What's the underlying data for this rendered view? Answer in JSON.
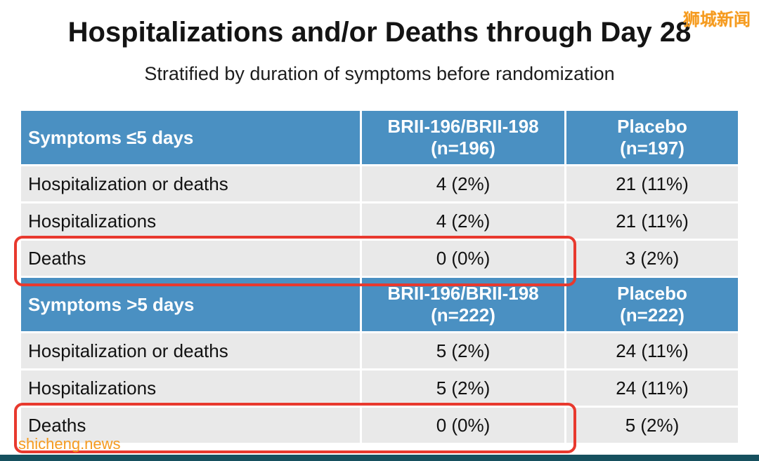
{
  "page": {
    "title": "Hospitalizations and/or Deaths through Day 28",
    "subtitle": "Stratified by duration of symptoms before randomization"
  },
  "watermarks": {
    "top_right": "狮城新闻",
    "bottom_left": "shicheng.news"
  },
  "table": {
    "sections": [
      {
        "header": {
          "row_label": "Symptoms ≤5 days",
          "treatment_line1": "BRII-196/BRII-198",
          "treatment_line2": "(n=196)",
          "placebo_line1": "Placebo",
          "placebo_line2": "(n=197)"
        },
        "rows": [
          {
            "label": "Hospitalization or deaths",
            "treatment": "4 (2%)",
            "placebo": "21 (11%)",
            "highlighted": false
          },
          {
            "label": "Hospitalizations",
            "treatment": "4 (2%)",
            "placebo": "21 (11%)",
            "highlighted": false
          },
          {
            "label": "Deaths",
            "treatment": "0 (0%)",
            "placebo": "3 (2%)",
            "highlighted": true
          }
        ]
      },
      {
        "header": {
          "row_label": "Symptoms >5 days",
          "treatment_line1": "BRII-196/BRII-198",
          "treatment_line2": "(n=222)",
          "placebo_line1": "Placebo",
          "placebo_line2": "(n=222)"
        },
        "rows": [
          {
            "label": "Hospitalization or deaths",
            "treatment": "5 (2%)",
            "placebo": "24 (11%)",
            "highlighted": false
          },
          {
            "label": "Hospitalizations",
            "treatment": "5 (2%)",
            "placebo": "24 (11%)",
            "highlighted": false
          },
          {
            "label": "Deaths",
            "treatment": "0 (0%)",
            "placebo": "5 (2%)",
            "highlighted": true
          }
        ]
      }
    ]
  },
  "colors": {
    "header_bg": "#4a90c2",
    "row_bg": "#e9e9e9",
    "highlight_border": "#e8392e",
    "watermark": "#f59b20",
    "footer_bar": "#16505e"
  }
}
